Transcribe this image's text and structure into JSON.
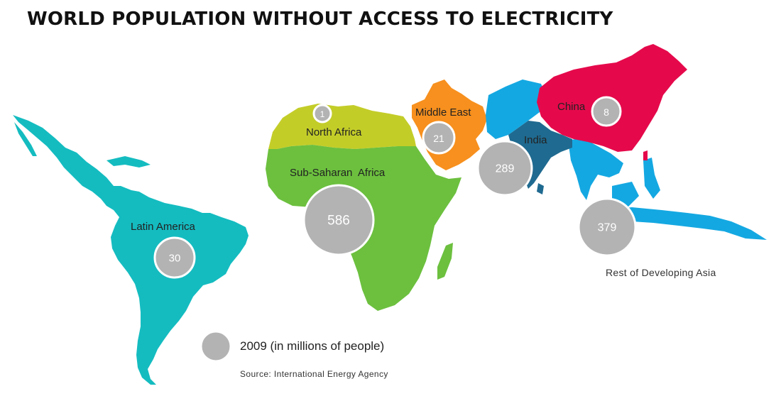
{
  "title": "WORLD POPULATION WITHOUT ACCESS TO ELECTRICITY",
  "regions": {
    "latin_america": {
      "label": "Latin America",
      "value": "30",
      "color": "#14bcc0"
    },
    "north_africa": {
      "label": "North Africa",
      "value": "1",
      "color": "#c3cd28"
    },
    "sub_saharan_africa": {
      "label": "Sub-Saharan  Africa",
      "value": "586",
      "color": "#6cc03e"
    },
    "middle_east": {
      "label": "Middle East",
      "value": "21",
      "color": "#f7901e"
    },
    "india": {
      "label": "India",
      "value": "289",
      "color": "#1f6a90"
    },
    "china": {
      "label": "China",
      "value": "8",
      "color": "#e5094b"
    },
    "rest_of_asia": {
      "label": "Rest of Developing Asia",
      "value": "379",
      "color": "#14a8e2"
    }
  },
  "legend": {
    "label": "2009 (in millions of people)"
  },
  "source": "Source: International Energy Agency",
  "bubble_color": "#b3b3b3"
}
